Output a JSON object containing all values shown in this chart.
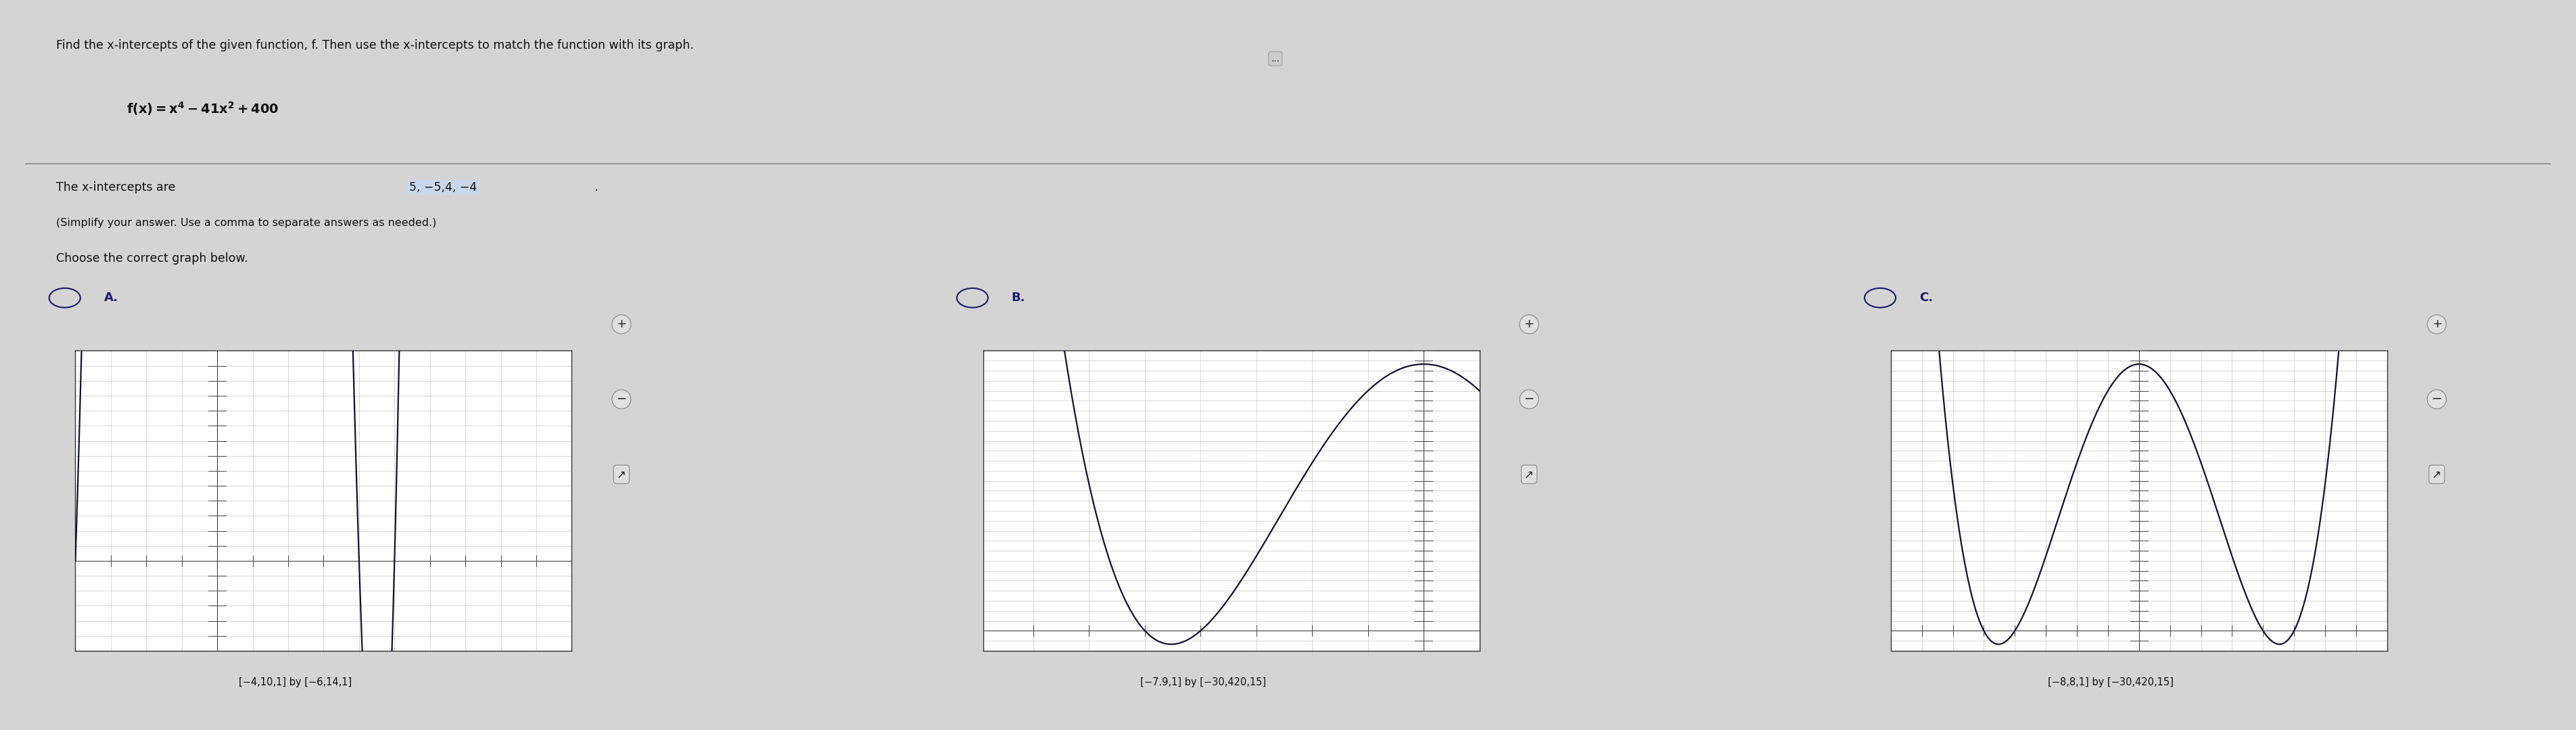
{
  "title_text": "Find the x-intercepts of the given function, f. Then use the x-intercepts to match the function with its graph.",
  "formula_text": "f(x)=x^4-41x^2+400",
  "intercepts_label": "The x-intercepts are ",
  "intercepts_answer": "5, −5,4, −4",
  "intercepts_period": ".",
  "simplify_text": "(Simplify your answer. Use a comma to separate answers as needed.)",
  "choose_text": "Choose the correct graph below.",
  "bg_color": "#d4d4d4",
  "panel_bg": "#d8d8d8",
  "text_color": "#1a1a6e",
  "highlight_color": "#c8d8f0",
  "radio_color": "#1a1a6e",
  "curve_color": "#111133",
  "axis_color": "#444444",
  "grid_color": "#bbbbbb",
  "sep_color": "#888888",
  "graph_A": {
    "label": "A.",
    "xmin": -4,
    "xmax": 10,
    "xstep": 1,
    "ymin": -6,
    "ymax": 14,
    "ystep": 1,
    "window_text": "[−4,10,1] by [−6,14,1]"
  },
  "graph_B": {
    "label": "B.",
    "xmin": -7.9,
    "xmax": 1,
    "xstep": 1,
    "ymin": -30,
    "ymax": 420,
    "ystep": 15,
    "window_text": "[−7.9,1] by [−30,420,15]"
  },
  "graph_C": {
    "label": "C.",
    "xmin": -8,
    "xmax": 8,
    "xstep": 1,
    "ymin": -30,
    "ymax": 420,
    "ystep": 15,
    "window_text": "[−8,8,1] by [−30,420,15]"
  }
}
